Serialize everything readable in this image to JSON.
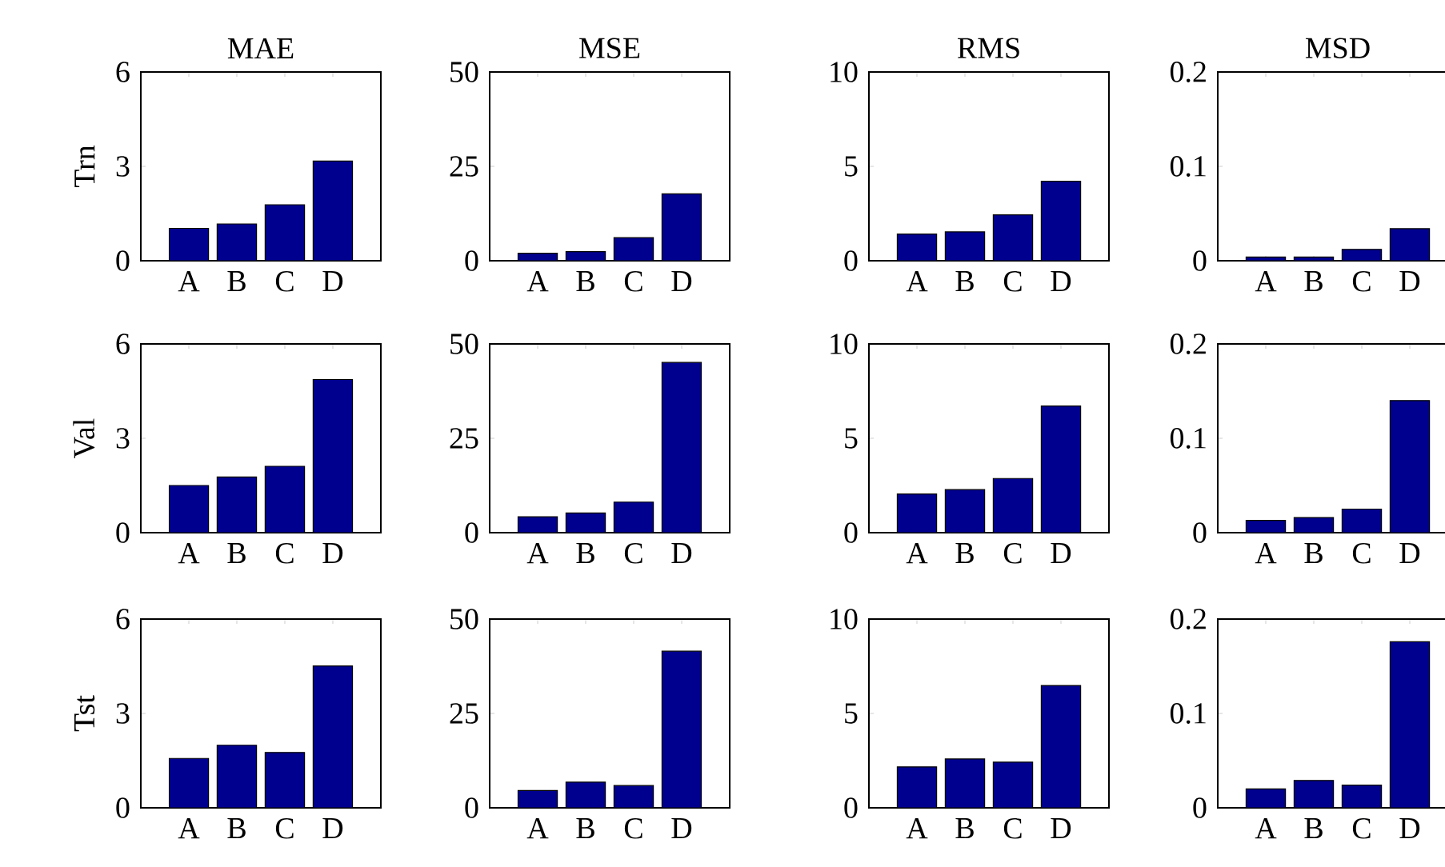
{
  "chart_data": [
    {
      "type": "bar",
      "title": "MAE",
      "ylabel": "Trn",
      "categories": [
        "A",
        "B",
        "C",
        "D"
      ],
      "values": [
        1.03,
        1.17,
        1.78,
        3.17
      ],
      "color": "#00008f",
      "ylim": [
        0,
        6
      ],
      "yticks": [
        0,
        3,
        6
      ]
    },
    {
      "type": "bar",
      "title": "MSE",
      "categories": [
        "A",
        "B",
        "C",
        "D"
      ],
      "values": [
        2.0,
        2.4,
        6.1,
        17.7
      ],
      "color": "#00008f",
      "ylim": [
        0,
        50
      ],
      "yticks": [
        0,
        25,
        50
      ]
    },
    {
      "type": "bar",
      "title": "RMS",
      "categories": [
        "A",
        "B",
        "C",
        "D"
      ],
      "values": [
        1.41,
        1.53,
        2.43,
        4.21
      ],
      "color": "#00008f",
      "ylim": [
        0,
        10
      ],
      "yticks": [
        0,
        5,
        10
      ]
    },
    {
      "type": "bar",
      "title": "MSD",
      "categories": [
        "A",
        "B",
        "C",
        "D"
      ],
      "values": [
        0.004,
        0.004,
        0.012,
        0.034
      ],
      "color": "#00008f",
      "ylim": [
        0,
        0.2
      ],
      "yticks": [
        0,
        0.1,
        0.2
      ]
    },
    {
      "type": "bar",
      "ylabel": "Val",
      "categories": [
        "A",
        "B",
        "C",
        "D"
      ],
      "values": [
        1.5,
        1.77,
        2.11,
        4.87
      ],
      "color": "#00008f",
      "ylim": [
        0,
        6
      ],
      "yticks": [
        0,
        3,
        6
      ]
    },
    {
      "type": "bar",
      "categories": [
        "A",
        "B",
        "C",
        "D"
      ],
      "values": [
        4.2,
        5.2,
        8.1,
        45.1
      ],
      "color": "#00008f",
      "ylim": [
        0,
        50
      ],
      "yticks": [
        0,
        25,
        50
      ]
    },
    {
      "type": "bar",
      "categories": [
        "A",
        "B",
        "C",
        "D"
      ],
      "values": [
        2.05,
        2.28,
        2.87,
        6.71
      ],
      "color": "#00008f",
      "ylim": [
        0,
        10
      ],
      "yticks": [
        0,
        5,
        10
      ]
    },
    {
      "type": "bar",
      "categories": [
        "A",
        "B",
        "C",
        "D"
      ],
      "values": [
        0.013,
        0.016,
        0.025,
        0.14
      ],
      "color": "#00008f",
      "ylim": [
        0,
        0.2
      ],
      "yticks": [
        0,
        0.1,
        0.2
      ]
    },
    {
      "type": "bar",
      "ylabel": "Tst",
      "categories": [
        "A",
        "B",
        "C",
        "D"
      ],
      "values": [
        1.57,
        1.99,
        1.76,
        4.51
      ],
      "color": "#00008f",
      "ylim": [
        0,
        6
      ],
      "yticks": [
        0,
        3,
        6
      ]
    },
    {
      "type": "bar",
      "categories": [
        "A",
        "B",
        "C",
        "D"
      ],
      "values": [
        4.6,
        6.8,
        5.9,
        41.5
      ],
      "color": "#00008f",
      "ylim": [
        0,
        50
      ],
      "yticks": [
        0,
        25,
        50
      ]
    },
    {
      "type": "bar",
      "categories": [
        "A",
        "B",
        "C",
        "D"
      ],
      "values": [
        2.17,
        2.59,
        2.42,
        6.48
      ],
      "color": "#00008f",
      "ylim": [
        0,
        10
      ],
      "yticks": [
        0,
        5,
        10
      ]
    },
    {
      "type": "bar",
      "categories": [
        "A",
        "B",
        "C",
        "D"
      ],
      "values": [
        0.02,
        0.029,
        0.024,
        0.176
      ],
      "color": "#00008f",
      "ylim": [
        0,
        0.2
      ],
      "yticks": [
        0,
        0.1,
        0.2
      ]
    }
  ]
}
